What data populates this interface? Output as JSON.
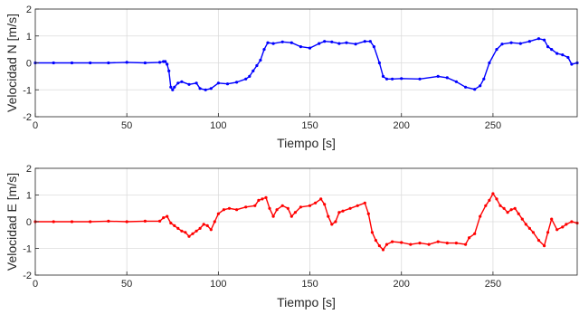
{
  "chart_data": [
    {
      "type": "line",
      "xlabel": "Tiempo [s]",
      "ylabel": "Velocidad N [m/s]",
      "xlim": [
        0,
        296
      ],
      "ylim": [
        -2,
        2
      ],
      "xticks": [
        0,
        50,
        100,
        150,
        200,
        250
      ],
      "yticks": [
        -2,
        -1,
        0,
        1,
        2
      ],
      "grid": true,
      "color": "#0000ff",
      "series": [
        {
          "x": [
            0,
            10,
            20,
            30,
            40,
            50,
            60,
            68,
            70,
            71,
            72,
            73,
            74,
            75,
            76,
            78,
            80,
            84,
            88,
            90,
            93,
            96,
            100,
            105,
            110,
            115,
            117,
            119,
            121,
            123,
            125,
            127,
            130,
            135,
            140,
            145,
            150,
            155,
            158,
            162,
            166,
            170,
            175,
            180,
            183,
            185,
            188,
            190,
            192,
            195,
            200,
            210,
            220,
            225,
            230,
            235,
            240,
            243,
            245,
            248,
            252,
            255,
            260,
            265,
            270,
            275,
            278,
            280,
            282,
            285,
            288,
            291,
            293,
            296
          ],
          "y": [
            0,
            0,
            0,
            0,
            0,
            0.02,
            0,
            0.02,
            0.05,
            0.05,
            -0.05,
            -0.3,
            -0.9,
            -1.0,
            -0.9,
            -0.75,
            -0.7,
            -0.8,
            -0.75,
            -0.95,
            -1.0,
            -0.95,
            -0.75,
            -0.78,
            -0.72,
            -0.6,
            -0.5,
            -0.3,
            -0.1,
            0.1,
            0.5,
            0.75,
            0.72,
            0.78,
            0.75,
            0.6,
            0.55,
            0.72,
            0.8,
            0.78,
            0.72,
            0.75,
            0.7,
            0.8,
            0.8,
            0.6,
            0.0,
            -0.5,
            -0.6,
            -0.6,
            -0.58,
            -0.6,
            -0.5,
            -0.55,
            -0.7,
            -0.9,
            -0.98,
            -0.85,
            -0.6,
            0.0,
            0.5,
            0.7,
            0.75,
            0.72,
            0.8,
            0.9,
            0.85,
            0.6,
            0.5,
            0.35,
            0.3,
            0.2,
            -0.05,
            0.0
          ]
        }
      ]
    },
    {
      "type": "line",
      "xlabel": "Tiempo [s]",
      "ylabel": "Velocidad E [m/s]",
      "xlim": [
        0,
        296
      ],
      "ylim": [
        -2,
        2
      ],
      "xticks": [
        0,
        50,
        100,
        150,
        200,
        250
      ],
      "yticks": [
        -2,
        -1,
        0,
        1,
        2
      ],
      "grid": true,
      "color": "#ff0000",
      "series": [
        {
          "x": [
            0,
            10,
            20,
            30,
            40,
            50,
            60,
            68,
            70,
            72,
            74,
            76,
            78,
            80,
            82,
            84,
            86,
            88,
            90,
            92,
            94,
            96,
            98,
            100,
            103,
            106,
            110,
            115,
            120,
            122,
            124,
            126,
            128,
            130,
            132,
            135,
            138,
            140,
            142,
            145,
            150,
            153,
            156,
            158,
            160,
            162,
            164,
            166,
            168,
            172,
            176,
            180,
            182,
            184,
            186,
            188,
            190,
            192,
            195,
            200,
            205,
            210,
            215,
            220,
            225,
            230,
            235,
            237,
            240,
            243,
            246,
            248,
            250,
            252,
            254,
            256,
            258,
            260,
            262,
            264,
            266,
            268,
            270,
            272,
            275,
            278,
            280,
            282,
            285,
            288,
            290,
            293,
            296
          ],
          "y": [
            0,
            0,
            0,
            0,
            0.02,
            0,
            0.02,
            0.02,
            0.15,
            0.2,
            -0.05,
            -0.15,
            -0.25,
            -0.35,
            -0.4,
            -0.55,
            -0.45,
            -0.35,
            -0.25,
            -0.1,
            -0.15,
            -0.3,
            0.0,
            0.3,
            0.45,
            0.5,
            0.45,
            0.55,
            0.6,
            0.8,
            0.85,
            0.9,
            0.5,
            0.2,
            0.45,
            0.6,
            0.5,
            0.2,
            0.35,
            0.55,
            0.6,
            0.7,
            0.85,
            0.65,
            0.2,
            -0.1,
            0.0,
            0.35,
            0.4,
            0.5,
            0.6,
            0.7,
            0.3,
            -0.4,
            -0.7,
            -0.9,
            -1.05,
            -0.85,
            -0.75,
            -0.78,
            -0.85,
            -0.8,
            -0.85,
            -0.75,
            -0.8,
            -0.8,
            -0.85,
            -0.6,
            -0.45,
            0.2,
            0.6,
            0.8,
            1.05,
            0.85,
            0.6,
            0.5,
            0.35,
            0.45,
            0.5,
            0.3,
            0.1,
            -0.1,
            -0.25,
            -0.4,
            -0.7,
            -0.9,
            -0.4,
            0.1,
            -0.3,
            -0.2,
            -0.1,
            0.0,
            -0.05
          ]
        }
      ]
    }
  ]
}
